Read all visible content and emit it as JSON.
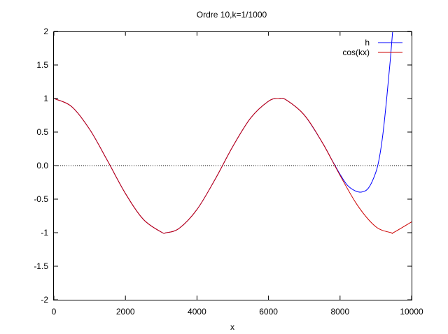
{
  "chart_data": {
    "type": "line",
    "title": "Ordre 10,k=1/1000",
    "xlabel": "x",
    "ylabel": "",
    "xlim": [
      0,
      10000
    ],
    "ylim": [
      -2,
      2
    ],
    "x_ticks": [
      0,
      2000,
      4000,
      6000,
      8000,
      10000
    ],
    "x_tick_labels": [
      "0",
      "2000",
      "4000",
      "6000",
      "8000",
      "10000"
    ],
    "y_ticks": [
      2,
      1.5,
      1,
      0.5,
      0,
      -0.5,
      -1,
      -1.5,
      -2
    ],
    "y_tick_labels": [
      "2",
      "1.5",
      "1",
      "0.5",
      "0.0",
      "-0.5",
      "-1",
      "-1.5",
      "-2"
    ],
    "grid": false,
    "legend_position": "top-right",
    "zero_line": {
      "y": 0,
      "style": "dotted",
      "color": "#000000"
    },
    "series": [
      {
        "name": "h",
        "color": "#0000ff",
        "x": [
          0,
          500,
          1000,
          1500,
          2000,
          2500,
          3000,
          3142,
          3500,
          4000,
          4500,
          5000,
          5500,
          6000,
          6283,
          6500,
          7000,
          7500,
          7800,
          8000,
          8200,
          8400,
          8600,
          8800,
          9000,
          9100,
          9200,
          9300,
          9400,
          9500
        ],
        "y": [
          1,
          0.878,
          0.54,
          0.071,
          -0.416,
          -0.801,
          -0.99,
          -1,
          -0.936,
          -0.654,
          -0.211,
          0.284,
          0.709,
          0.96,
          1,
          0.977,
          0.754,
          0.347,
          0.057,
          -0.13,
          -0.29,
          -0.37,
          -0.395,
          -0.33,
          -0.1,
          0.12,
          0.48,
          0.98,
          1.55,
          2.2
        ]
      },
      {
        "name": "cos(kx)",
        "color": "#cc0000",
        "x": [
          0,
          500,
          1000,
          1500,
          2000,
          2500,
          3000,
          3142,
          3500,
          4000,
          4500,
          5000,
          5500,
          6000,
          6283,
          6500,
          7000,
          7500,
          8000,
          8500,
          9000,
          9425,
          9500,
          10000
        ],
        "y": [
          1,
          0.878,
          0.54,
          0.071,
          -0.416,
          -0.801,
          -0.99,
          -1,
          -0.936,
          -0.654,
          -0.211,
          0.284,
          0.709,
          0.96,
          1,
          0.977,
          0.754,
          0.347,
          -0.146,
          -0.602,
          -0.911,
          -1,
          -0.997,
          -0.839
        ]
      }
    ]
  }
}
